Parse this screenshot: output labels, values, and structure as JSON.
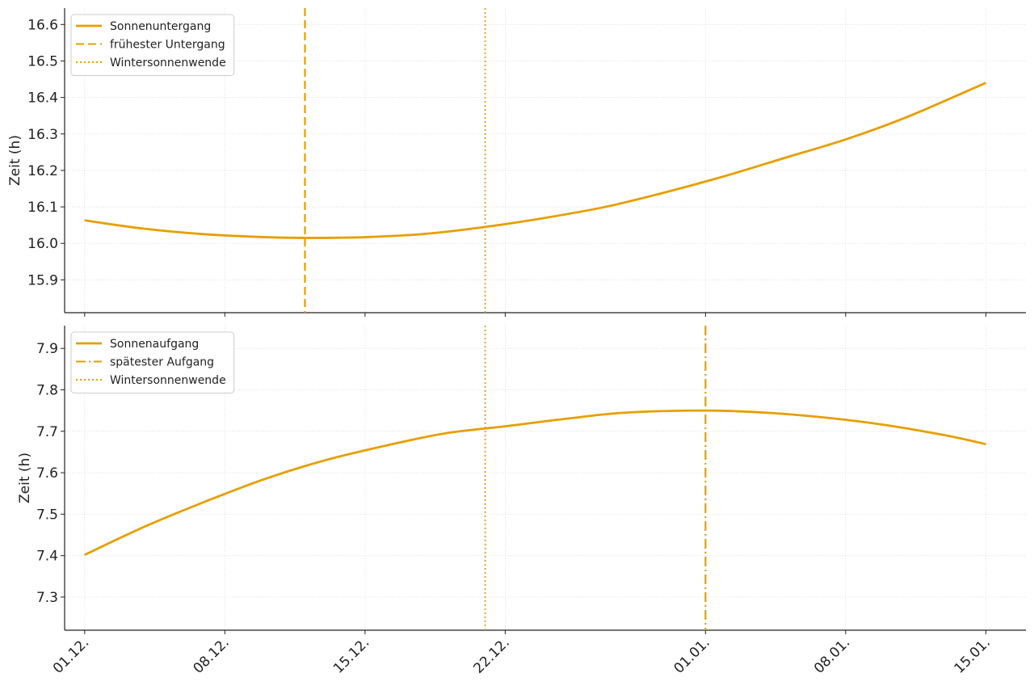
{
  "chart_data": [
    {
      "type": "line",
      "x_type": "date",
      "title": "",
      "xlabel": "",
      "ylabel": "Zeit (h)",
      "ylim": [
        15.81,
        16.645
      ],
      "yticks": [
        15.9,
        16.0,
        16.1,
        16.2,
        16.3,
        16.4,
        16.5,
        16.6
      ],
      "xlim": [
        "2023-11-30",
        "2024-01-17"
      ],
      "xticks": [
        "2023-12-01",
        "2023-12-08",
        "2023-12-15",
        "2023-12-22",
        "2024-01-01",
        "2024-01-08",
        "2024-01-15"
      ],
      "xtick_labels": [
        "01.12.",
        "08.12.",
        "15.12.",
        "22.12.",
        "01.01.",
        "08.01.",
        "15.01."
      ],
      "show_xtick_labels": false,
      "grid": true,
      "legend_position": "top-left",
      "series": [
        {
          "name": "Sonnenuntergang",
          "style": "solid",
          "color": "#E69F00",
          "x": [
            "2023-12-01",
            "2023-12-04",
            "2023-12-07",
            "2023-12-10",
            "2023-12-12",
            "2023-12-15",
            "2023-12-18",
            "2023-12-21",
            "2023-12-24",
            "2023-12-27",
            "2023-12-30",
            "2024-01-02",
            "2024-01-05",
            "2024-01-08",
            "2024-01-11",
            "2024-01-15"
          ],
          "y": [
            16.063,
            16.04,
            16.025,
            16.017,
            16.015,
            16.017,
            16.026,
            16.045,
            16.07,
            16.1,
            16.14,
            16.185,
            16.235,
            16.285,
            16.345,
            16.44
          ]
        }
      ],
      "vlines": [
        {
          "name": "frühester Untergang",
          "x": "2023-12-12",
          "style": "dashed",
          "color": "#E69F00"
        },
        {
          "name": "Wintersonnenwende",
          "x": "2023-12-21",
          "style": "dotted",
          "color": "#E69F00"
        }
      ]
    },
    {
      "type": "line",
      "x_type": "date",
      "title": "",
      "xlabel": "",
      "ylabel": "Zeit (h)",
      "ylim": [
        7.22,
        7.955
      ],
      "yticks": [
        7.3,
        7.4,
        7.5,
        7.6,
        7.7,
        7.8,
        7.9
      ],
      "xlim": [
        "2023-11-30",
        "2024-01-17"
      ],
      "xticks": [
        "2023-12-01",
        "2023-12-08",
        "2023-12-15",
        "2023-12-22",
        "2024-01-01",
        "2024-01-08",
        "2024-01-15"
      ],
      "xtick_labels": [
        "01.12.",
        "08.12.",
        "15.12.",
        "22.12.",
        "01.01.",
        "08.01.",
        "15.01."
      ],
      "show_xtick_labels": true,
      "grid": true,
      "legend_position": "top-left",
      "series": [
        {
          "name": "Sonnenaufgang",
          "style": "solid",
          "color": "#E69F00",
          "x": [
            "2023-12-01",
            "2023-12-04",
            "2023-12-07",
            "2023-12-10",
            "2023-12-13",
            "2023-12-16",
            "2023-12-19",
            "2023-12-22",
            "2023-12-25",
            "2023-12-28",
            "2024-01-01",
            "2024-01-04",
            "2024-01-07",
            "2024-01-10",
            "2024-01-13",
            "2024-01-15"
          ],
          "y": [
            7.402,
            7.47,
            7.53,
            7.585,
            7.63,
            7.665,
            7.695,
            7.712,
            7.73,
            7.745,
            7.75,
            7.745,
            7.733,
            7.715,
            7.69,
            7.669
          ]
        }
      ],
      "vlines": [
        {
          "name": "spätester Aufgang",
          "x": "2024-01-01",
          "style": "dashdot",
          "color": "#E69F00"
        },
        {
          "name": "Wintersonnenwende",
          "x": "2023-12-21",
          "style": "dotted",
          "color": "#E69F00"
        }
      ]
    }
  ]
}
